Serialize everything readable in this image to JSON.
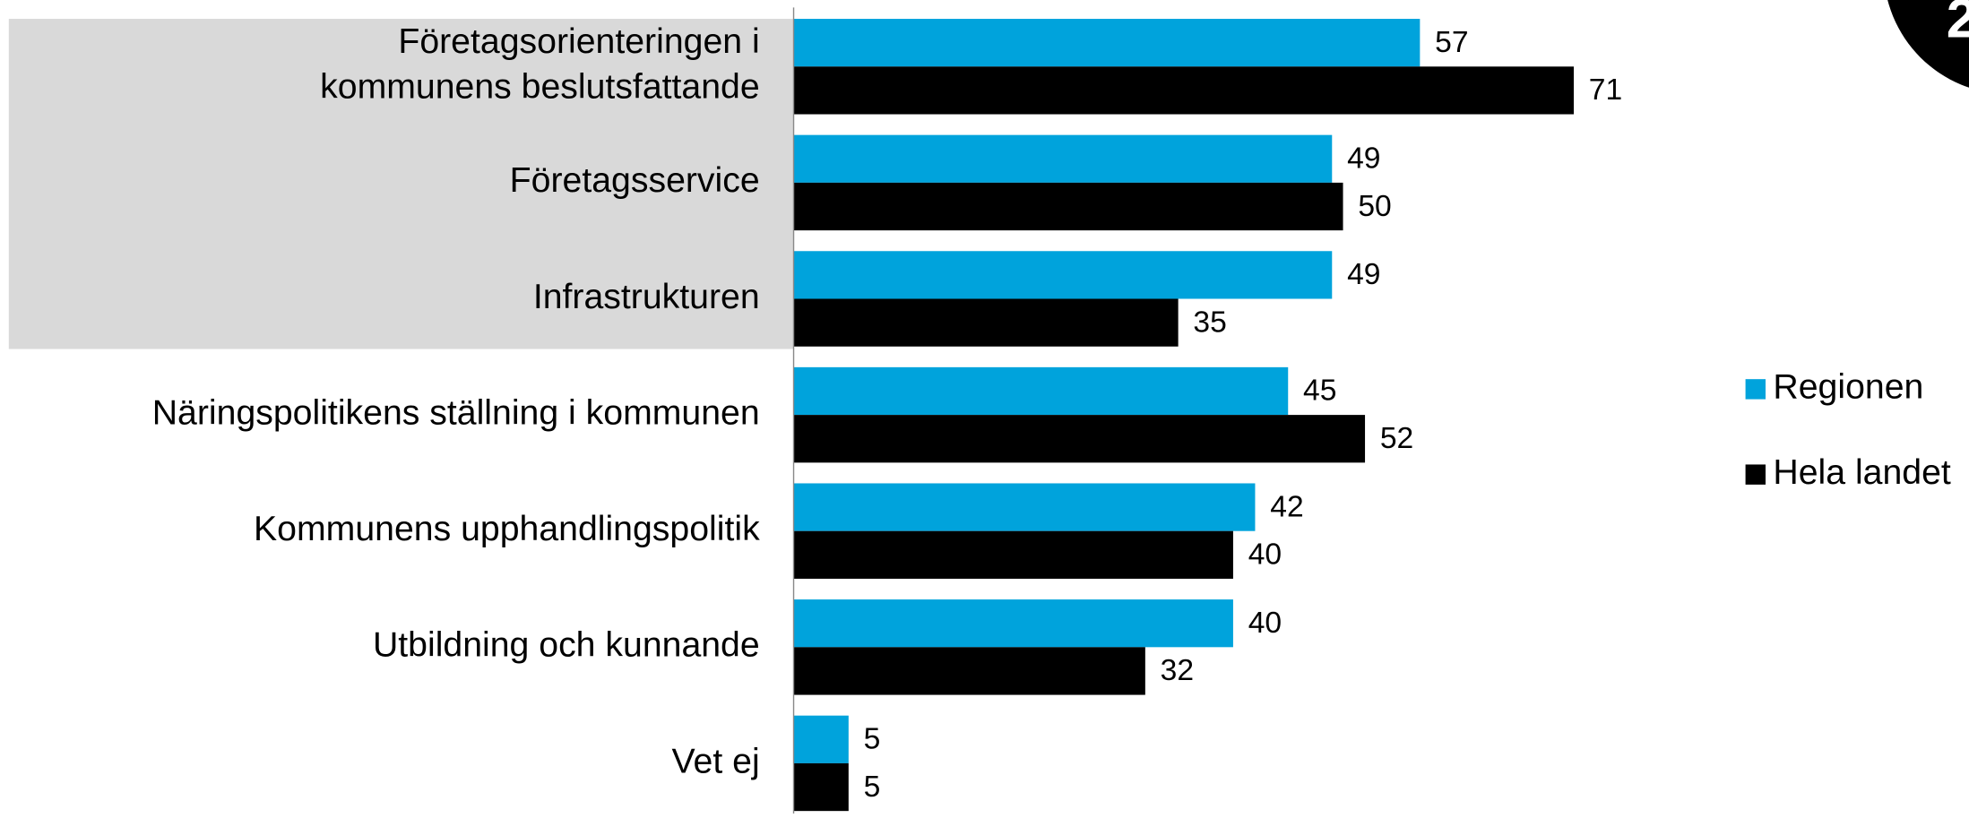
{
  "chart_data": {
    "type": "hbar",
    "categories": [
      [
        "Företagsorienteringen i",
        "kommunens beslutsfattande"
      ],
      "Företagsservice",
      "Infrastrukturen",
      "Näringspolitikens ställning i kommunen",
      "Kommunens upphandlingspolitik",
      "Utbildning och kunnande",
      "Vet ej"
    ],
    "series": [
      {
        "name": "Regionen",
        "color": "#00a3dc",
        "values": [
          57,
          49,
          49,
          45,
          42,
          40,
          5
        ]
      },
      {
        "name": "Hela landet",
        "color": "#000000",
        "values": [
          71,
          50,
          35,
          52,
          40,
          32,
          5
        ]
      }
    ],
    "highlight_color": "#d9d9d9",
    "badge": "2",
    "legend": "right"
  }
}
